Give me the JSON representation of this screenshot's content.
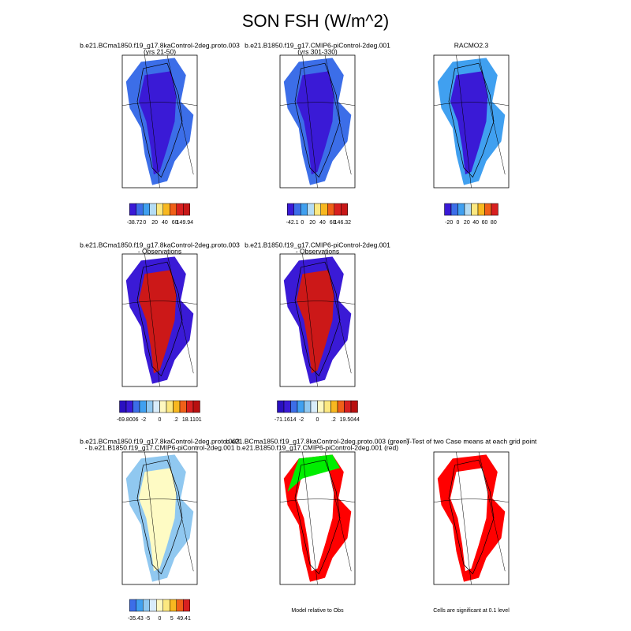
{
  "title": "SON FSH (W/m^2)",
  "panels": [
    {
      "title": [
        "b.e21.BCma1850.f19_g17.8kaControl-2deg.proto.003",
        "(yrs 21-50)"
      ],
      "colorbar": [
        "-38.72",
        "0",
        "20",
        "40",
        "60",
        "149.94"
      ]
    },
    {
      "title": [
        "b.e21.B1850.f19_g17.CMIP6-piControl-2deg.001",
        "(yrs 301-330)"
      ],
      "colorbar": [
        "-42.1",
        "0",
        "20",
        "40",
        "60",
        "146.32"
      ]
    },
    {
      "title": [
        "RACMO2.3"
      ],
      "colorbar": [
        "-20",
        "0",
        "20",
        "40",
        "60",
        "80"
      ]
    },
    {
      "title": [
        "b.e21.BCma1850.f19_g17.8kaControl-2deg.proto.003",
        "- Observations"
      ],
      "colorbar": [
        "-69.8006",
        "-2",
        "0",
        ".2",
        "18.1101"
      ]
    },
    {
      "title": [
        "b.e21.B1850.f19_g17.CMIP6-piControl-2deg.001",
        "- Observations"
      ],
      "colorbar": [
        "-71.1614",
        "-2",
        "0",
        ".2",
        "19.5044"
      ]
    },
    {
      "title": [
        "b.e21.BCma1850.f19_g17.8kaControl-2deg.proto.003",
        "- b.e21.B1850.f19_g17.CMIP6-piControl-2deg.001"
      ],
      "colorbar": [
        "-35.43",
        "-5",
        "0",
        "5",
        "49.41"
      ]
    },
    {
      "title": [
        "b.e21.BCma1850.f19_g17.8kaControl-2deg.proto.003 (green)",
        "b.e21.B1850.f19_g17.CMIP6-piControl-2deg.001 (red)"
      ],
      "note": "Model relative to Obs"
    },
    {
      "title": [
        "T-Test of two Case means at each grid point"
      ],
      "note": "Cells are significant at 0.1 level"
    }
  ]
}
